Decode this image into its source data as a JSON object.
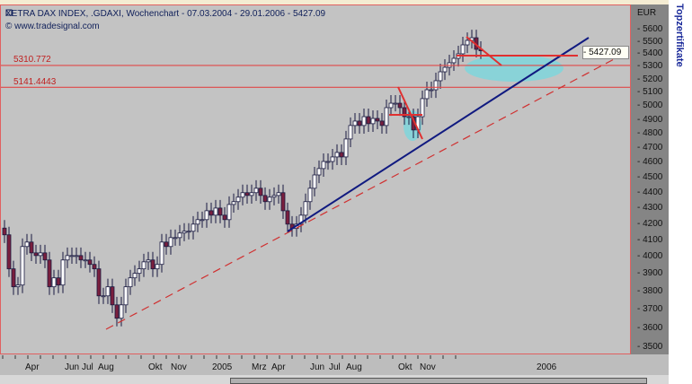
{
  "header": {
    "title": "XETRA DAX INDEX, .GDAXI, Wochenchart - 07.03.2004 - 29.01.2006 - 5427.09",
    "copyright": "© www.tradesignal.com"
  },
  "sidebar_text": "Topzertifikate",
  "colors": {
    "up_candle": "#ffffff",
    "down_candle": "#7a1f3d",
    "trendline": "#101a80",
    "support": "#e03030",
    "highlight": "#7fd6dc"
  },
  "chart_data": {
    "type": "candlestick",
    "scale": "log",
    "currency": "EUR",
    "ylim": [
      3450,
      5700
    ],
    "yticks": [
      "5600",
      "5500",
      "5400",
      "5300",
      "5200",
      "5100",
      "5000",
      "4900",
      "4800",
      "4700",
      "4600",
      "4500",
      "4400",
      "4300",
      "4200",
      "4100",
      "4000",
      "3900",
      "3800",
      "3700",
      "3600",
      "3500"
    ],
    "xticks": [
      "Apr",
      "Jun",
      "Jul",
      "Aug",
      "Okt",
      "Nov",
      "2005",
      "Mrz",
      "Apr",
      "Jun",
      "Jul",
      "Aug",
      "Okt",
      "Nov",
      "2006"
    ],
    "last_price": "5427.09",
    "levels": [
      {
        "label": "5310.772",
        "value": 5310.772
      },
      {
        "label": "5141.4443",
        "value": 5141.4443
      }
    ],
    "closes": [
      4133,
      3930,
      3827,
      3837,
      4062,
      4089,
      4024,
      4008,
      4024,
      3982,
      3827,
      3878,
      3837,
      3982,
      4008,
      4008,
      4008,
      3982,
      3982,
      3956,
      3930,
      3776,
      3776,
      3827,
      3726,
      3653,
      3726,
      3827,
      3878,
      3904,
      3930,
      3971,
      3982,
      3930,
      3956,
      4089,
      4062,
      4116,
      4116,
      4144,
      4155,
      4155,
      4199,
      4227,
      4227,
      4283,
      4255,
      4300,
      4255,
      4227,
      4323,
      4341,
      4370,
      4399,
      4381,
      4399,
      4428,
      4381,
      4341,
      4370,
      4381,
      4399,
      4283,
      4199,
      4172,
      4199,
      4255,
      4341,
      4428,
      4516,
      4559,
      4607,
      4607,
      4638,
      4669,
      4638,
      4763,
      4859,
      4891,
      4859,
      4923,
      4872,
      4910,
      4891,
      4859,
      4989,
      5022,
      5022,
      4989,
      4923,
      4923,
      4827,
      4923,
      5056,
      5123,
      5123,
      5192,
      5261,
      5296,
      5332,
      5367,
      5403,
      5475,
      5511,
      5533,
      5439,
      5427
    ]
  }
}
